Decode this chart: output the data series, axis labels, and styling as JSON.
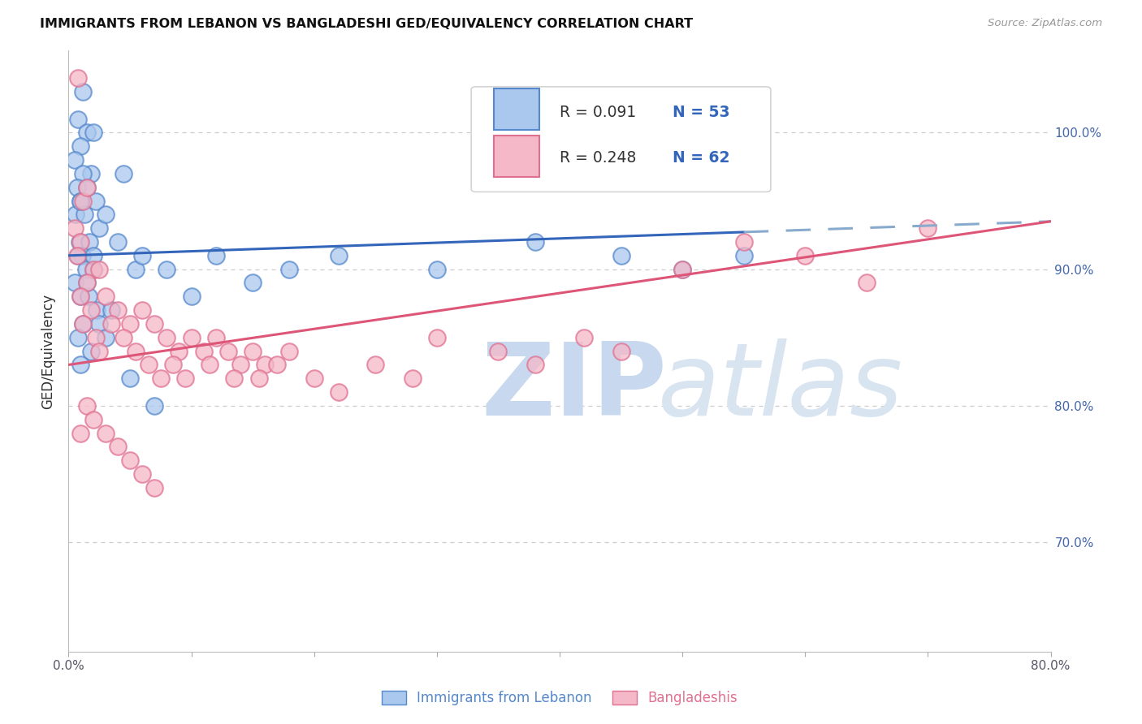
{
  "title": "IMMIGRANTS FROM LEBANON VS BANGLADESHI GED/EQUIVALENCY CORRELATION CHART",
  "source": "Source: ZipAtlas.com",
  "ylabel_left": "GED/Equivalency",
  "xlim": [
    0,
    80
  ],
  "ylim": [
    62,
    106
  ],
  "legend_r1": "R = 0.091",
  "legend_n1": "N = 53",
  "legend_r2": "R = 0.248",
  "legend_n2": "N = 62",
  "blue_face": "#aac8ee",
  "blue_edge": "#5588cc",
  "pink_face": "#f4b8c8",
  "pink_edge": "#e07090",
  "trend_blue_solid": "#3366bb",
  "trend_blue_dash": "#88aacc",
  "trend_pink": "#dd5577",
  "grid_color": "#cccccc",
  "right_tick_color": "#4466aa",
  "x_ticks": [
    0,
    10,
    20,
    30,
    40,
    50,
    60,
    70,
    80
  ],
  "x_labels": [
    "0.0%",
    "",
    "",
    "",
    "",
    "",
    "",
    "",
    "80.0%"
  ],
  "y_ticks": [
    70,
    80,
    90,
    100
  ],
  "y_labels": [
    "70.0%",
    "80.0%",
    "90.0%",
    "100.0%"
  ],
  "blue_x": [
    1.2,
    0.8,
    1.5,
    2.0,
    1.0,
    0.5,
    1.8,
    1.2,
    0.7,
    1.5,
    2.2,
    1.0,
    0.6,
    1.3,
    2.5,
    0.9,
    1.7,
    1.1,
    0.8,
    1.4,
    2.0,
    0.5,
    1.0,
    1.6,
    2.3,
    3.5,
    1.2,
    0.8,
    4.5,
    1.0,
    3.0,
    2.0,
    1.5,
    4.0,
    5.5,
    6.0,
    8.0,
    12.0,
    15.0,
    18.0,
    22.0,
    30.0,
    38.0,
    45.0,
    50.0,
    55.0,
    2.5,
    3.0,
    1.8,
    1.0,
    5.0,
    7.0,
    10.0
  ],
  "blue_y": [
    103,
    101,
    100,
    100,
    99,
    98,
    97,
    97,
    96,
    96,
    95,
    95,
    94,
    94,
    93,
    92,
    92,
    91,
    91,
    90,
    90,
    89,
    88,
    88,
    87,
    87,
    86,
    85,
    97,
    95,
    94,
    91,
    89,
    92,
    90,
    91,
    90,
    91,
    89,
    90,
    91,
    90,
    92,
    91,
    90,
    91,
    86,
    85,
    84,
    83,
    82,
    80,
    88
  ],
  "pink_x": [
    0.8,
    1.2,
    0.5,
    1.5,
    1.0,
    0.7,
    2.0,
    1.5,
    1.0,
    2.5,
    1.8,
    1.2,
    3.0,
    2.2,
    4.0,
    3.5,
    2.5,
    5.0,
    4.5,
    6.0,
    5.5,
    7.0,
    6.5,
    8.0,
    7.5,
    9.0,
    8.5,
    10.0,
    9.5,
    11.0,
    12.0,
    11.5,
    13.0,
    14.0,
    13.5,
    15.0,
    16.0,
    15.5,
    17.0,
    18.0,
    20.0,
    22.0,
    25.0,
    28.0,
    30.0,
    35.0,
    38.0,
    42.0,
    45.0,
    50.0,
    55.0,
    60.0,
    65.0,
    70.0,
    1.0,
    1.5,
    2.0,
    3.0,
    4.0,
    5.0,
    6.0,
    7.0
  ],
  "pink_y": [
    104,
    95,
    93,
    96,
    92,
    91,
    90,
    89,
    88,
    90,
    87,
    86,
    88,
    85,
    87,
    86,
    84,
    86,
    85,
    87,
    84,
    86,
    83,
    85,
    82,
    84,
    83,
    85,
    82,
    84,
    85,
    83,
    84,
    83,
    82,
    84,
    83,
    82,
    83,
    84,
    82,
    81,
    83,
    82,
    85,
    84,
    83,
    85,
    84,
    90,
    92,
    91,
    89,
    93,
    78,
    80,
    79,
    78,
    77,
    76,
    75,
    74
  ],
  "watermark_zip_color": "#c8d8ee",
  "watermark_atlas_color": "#d8e4f0"
}
